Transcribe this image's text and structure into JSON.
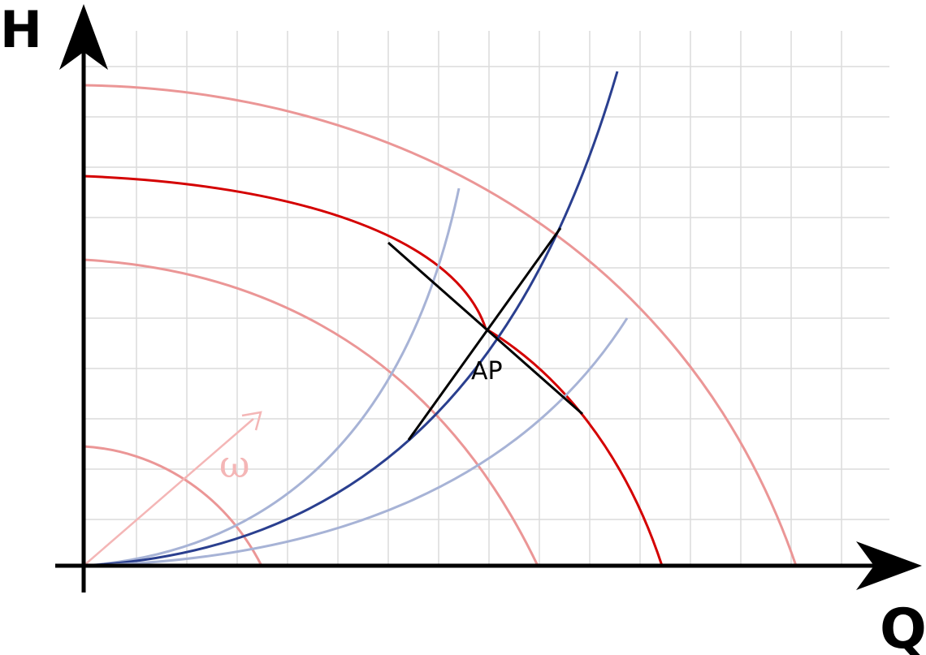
{
  "labels": {
    "y_axis": "H",
    "x_axis": "Q",
    "operating_point": "AP",
    "speed_symbol": "ω"
  },
  "colors": {
    "pump_curve_main": "#d40000",
    "pump_curve_faint": "#eb9696",
    "system_curve_main": "#2a3f8f",
    "system_curve_faint": "#a7b3d6",
    "grid": "#dcdcdc",
    "omega": "#f4b6b6",
    "axes": "#000000"
  },
  "icons": {
    "omega_arrow": "arrow-up-right-icon",
    "axis_arrows": "arrowhead-icon"
  }
}
